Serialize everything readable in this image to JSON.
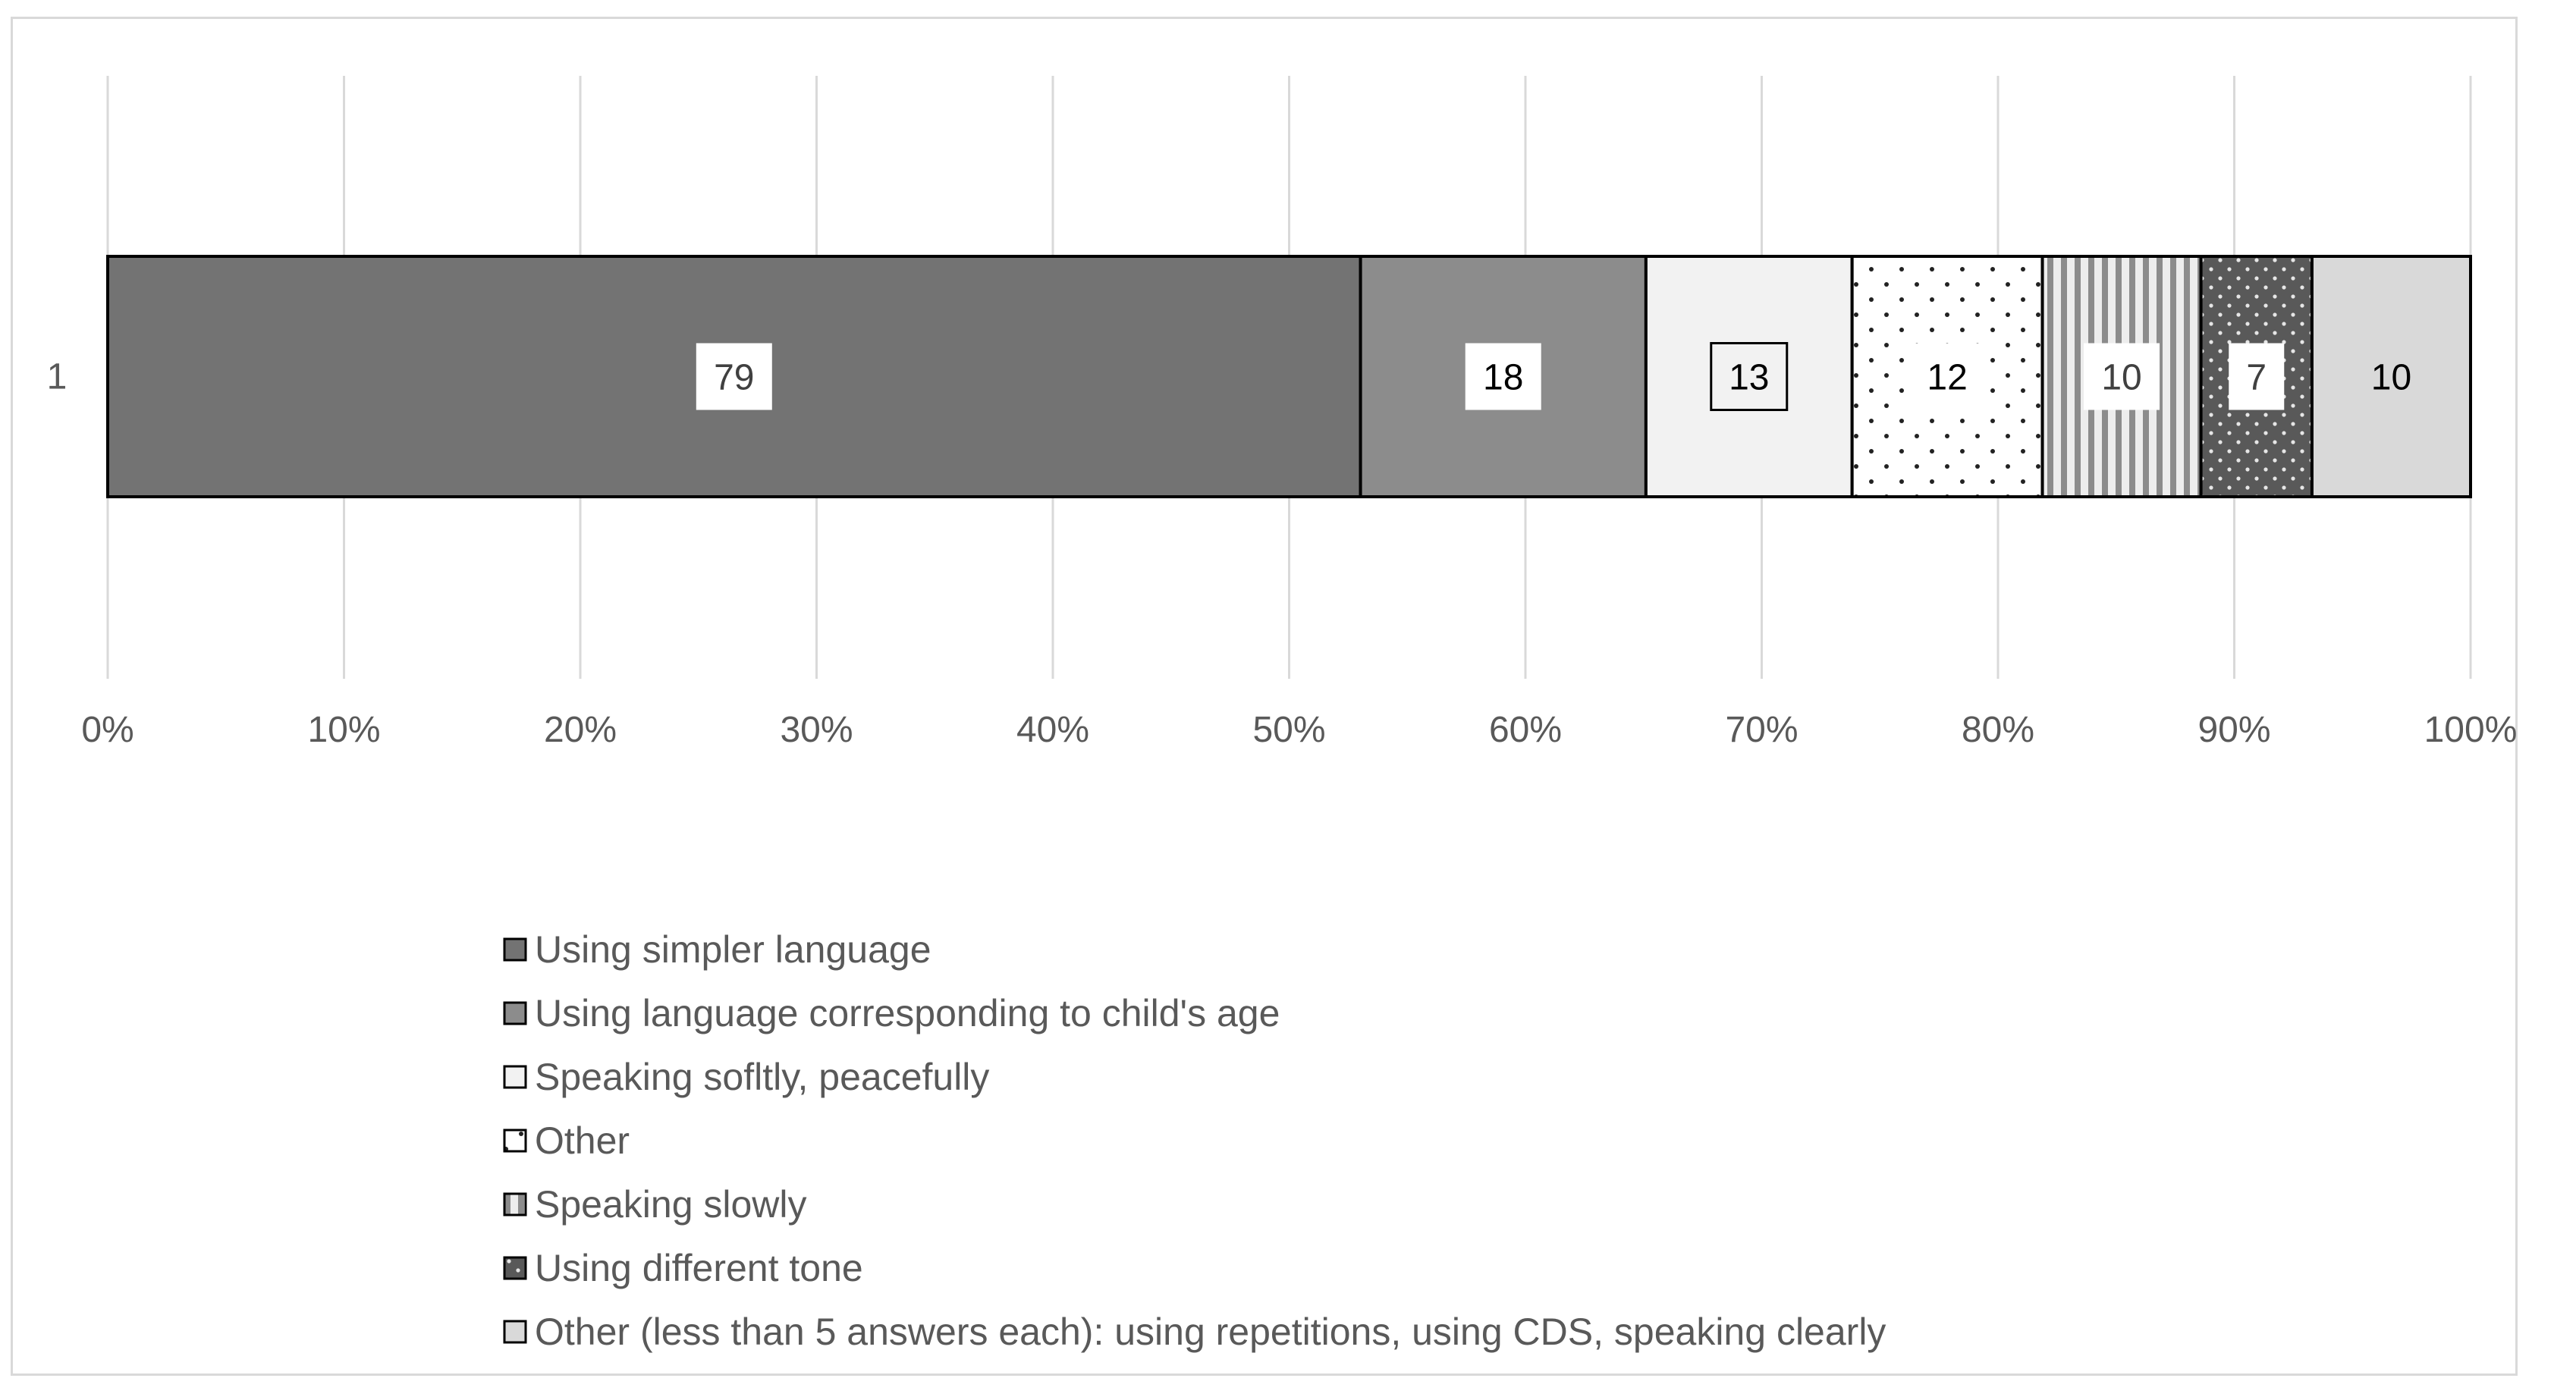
{
  "chart_data": {
    "type": "bar",
    "orientation": "horizontal",
    "stacking": "percent",
    "categories": [
      "1"
    ],
    "series": [
      {
        "name": "Using simpler language",
        "values": [
          79
        ],
        "color": "#737373",
        "pattern": "solid"
      },
      {
        "name": "Using language corresponding to child's age",
        "values": [
          18
        ],
        "color": "#8c8c8c",
        "pattern": "solid"
      },
      {
        "name": "Speaking sofltly, peacefully",
        "values": [
          13
        ],
        "color": "#f2f2f2",
        "pattern": "solid"
      },
      {
        "name": "Other",
        "values": [
          12
        ],
        "color": "#ffffff",
        "pattern": "dots"
      },
      {
        "name": "Speaking slowly",
        "values": [
          10
        ],
        "color": "#d9d9d9",
        "pattern": "vertical-stripes"
      },
      {
        "name": "Using different tone",
        "values": [
          7
        ],
        "color": "#595959",
        "pattern": "dots-dark"
      },
      {
        "name": "Other (less than 5 answers each): using repetitions, using CDS, speaking clearly",
        "values": [
          10
        ],
        "color": "#d9d9d9",
        "pattern": "solid"
      }
    ],
    "x_ticks": [
      "0%",
      "10%",
      "20%",
      "30%",
      "40%",
      "50%",
      "60%",
      "70%",
      "80%",
      "90%",
      "100%"
    ],
    "xlim": [
      0,
      100
    ],
    "grid": "vertical",
    "legend_position": "bottom",
    "title": "",
    "xlabel": "",
    "ylabel": ""
  }
}
